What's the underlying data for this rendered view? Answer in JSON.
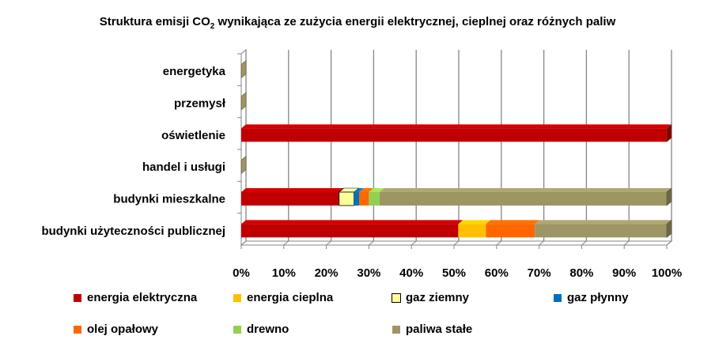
{
  "chart_data": {
    "type": "bar",
    "orientation": "horizontal",
    "stacked": "percent",
    "title_main": "Struktura emisji CO",
    "title_sub": "2",
    "title_rest": " wynikająca ze zużycia energii elektrycznej, cieplnej oraz różnych paliw",
    "categories": [
      "energetyka",
      "przemysł",
      "oświetlenie",
      "handel i usługi",
      "budynki mieszkalne",
      "budynki użyteczności publicznej"
    ],
    "series": [
      {
        "name": "energia elektryczna",
        "color": "#C00000",
        "values": [
          0,
          0,
          100,
          0,
          23,
          51
        ]
      },
      {
        "name": "energia cieplna",
        "color": "#FFC000",
        "values": [
          0,
          0,
          0,
          0,
          0,
          6.5
        ]
      },
      {
        "name": "gaz ziemny",
        "color": "#FFFF99",
        "values": [
          0,
          0,
          0,
          0,
          3.5,
          0
        ]
      },
      {
        "name": "gaz płynny",
        "color": "#0070C0",
        "values": [
          0,
          0,
          0,
          0,
          1.2,
          0
        ]
      },
      {
        "name": "olej opałowy",
        "color": "#FF6600",
        "values": [
          0,
          0,
          0,
          0,
          2.3,
          11.5
        ]
      },
      {
        "name": "drewno",
        "color": "#92D050",
        "values": [
          0,
          0,
          0,
          0,
          2.5,
          0
        ]
      },
      {
        "name": "paliwa stałe",
        "color": "#9E9565",
        "values": [
          0,
          0,
          0,
          0,
          67.5,
          31
        ]
      }
    ],
    "x_ticks": [
      "0%",
      "10%",
      "20%",
      "30%",
      "40%",
      "50%",
      "60%",
      "70%",
      "80%",
      "90%",
      "100%"
    ],
    "xlim": [
      0,
      100
    ],
    "grid": true,
    "legend_position": "bottom"
  }
}
